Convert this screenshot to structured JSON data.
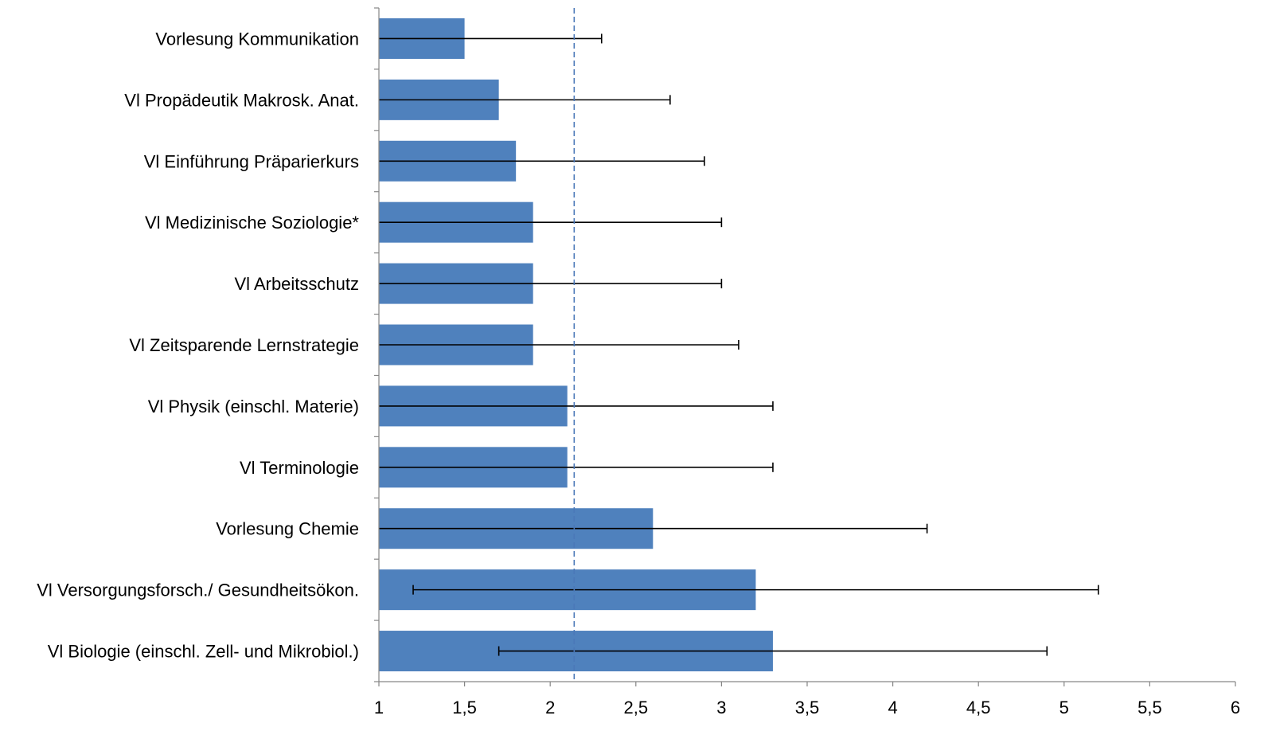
{
  "chart_data": {
    "type": "bar",
    "orientation": "horizontal",
    "title": "",
    "xlabel": "",
    "ylabel": "",
    "xlim": [
      1,
      6
    ],
    "x_ticks": [
      "1",
      "1,5",
      "2",
      "2,5",
      "3",
      "3,5",
      "4",
      "4,5",
      "5",
      "5,5",
      "6"
    ],
    "x_tick_values": [
      1,
      1.5,
      2,
      2.5,
      3,
      3.5,
      4,
      4.5,
      5,
      5.5,
      6
    ],
    "grid": false,
    "bar_color": "#4f81bd",
    "reference_line": {
      "value": 2.14,
      "style": "dashed",
      "color": "#4a78b8"
    },
    "categories": [
      "Vorlesung Kommunikation",
      "Vl Propädeutik Makrosk. Anat.",
      "Vl Einführung Präparierkurs",
      "Vl Medizinische Soziologie*",
      "Vl Arbeitsschutz",
      "Vl Zeitsparende Lernstrategie",
      "Vl Physik (einschl. Materie)",
      "Vl Terminologie",
      "Vorlesung Chemie",
      "Vl Versorgungsforsch./ Gesundheitsökon.",
      "Vl Biologie (einschl. Zell- und Mikrobiol.)"
    ],
    "values": [
      1.5,
      1.7,
      1.8,
      1.9,
      1.9,
      1.9,
      2.1,
      2.1,
      2.6,
      3.2,
      3.3
    ],
    "error_low": [
      1.0,
      1.0,
      1.0,
      1.0,
      1.0,
      1.0,
      1.0,
      1.0,
      1.0,
      1.2,
      1.7
    ],
    "error_high": [
      2.3,
      2.7,
      2.9,
      3.0,
      3.0,
      3.1,
      3.3,
      3.3,
      4.2,
      5.2,
      4.9
    ]
  }
}
